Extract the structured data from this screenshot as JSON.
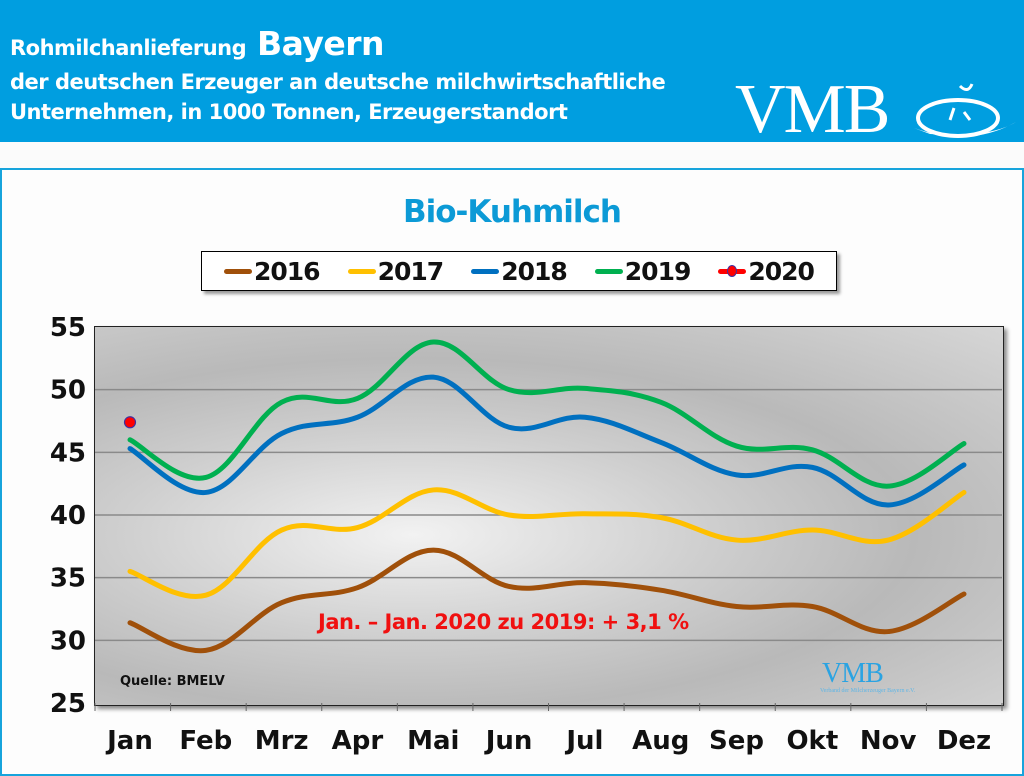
{
  "header": {
    "title_prefix": "Rohmilchanlieferung",
    "title_region": "Bayern",
    "subtitle_line1": "der deutschen Erzeuger an deutsche milchwirtschaftliche",
    "subtitle_line2": "Unternehmen, in 1000 Tonnen, Erzeugerstandort",
    "logo_text": "VMB",
    "logo_icon": "vmb-swirl-icon"
  },
  "colors": {
    "header_bg": "#009ee0",
    "title": "#0c9ad6",
    "s2016": "#a0500a",
    "s2017": "#ffc000",
    "s2018": "#0070c0",
    "s2019": "#00b050",
    "s2020": "#ff0000",
    "annotation": "#f01010"
  },
  "chart_data": {
    "type": "line",
    "title": "Bio-Kuhmilch",
    "xlabel": "",
    "ylabel": "",
    "unit": "1000 Tonnen",
    "categories": [
      "Jan",
      "Feb",
      "Mrz",
      "Apr",
      "Mai",
      "Jun",
      "Jul",
      "Aug",
      "Sep",
      "Okt",
      "Nov",
      "Dez"
    ],
    "ylim": [
      25,
      55
    ],
    "yticks": [
      25,
      30,
      35,
      40,
      45,
      50,
      55
    ],
    "grid": true,
    "legend_position": "top",
    "series": [
      {
        "name": "2016",
        "color": "#a0500a",
        "values": [
          31.4,
          29.2,
          33.0,
          34.2,
          37.2,
          34.3,
          34.6,
          34.0,
          32.7,
          32.7,
          30.7,
          33.7
        ]
      },
      {
        "name": "2017",
        "color": "#ffc000",
        "values": [
          35.5,
          33.6,
          38.8,
          39.0,
          42.0,
          40.0,
          40.1,
          39.8,
          38.0,
          38.8,
          38.0,
          41.8
        ]
      },
      {
        "name": "2018",
        "color": "#0070c0",
        "values": [
          45.3,
          41.8,
          46.5,
          47.8,
          51.0,
          47.0,
          47.8,
          45.8,
          43.2,
          43.8,
          40.8,
          44.0
        ]
      },
      {
        "name": "2019",
        "color": "#00b050",
        "values": [
          46.0,
          43.0,
          49.0,
          49.3,
          53.8,
          50.0,
          50.1,
          49.0,
          45.5,
          45.2,
          42.3,
          45.7
        ]
      },
      {
        "name": "2020",
        "color": "#ff0000",
        "marker": true,
        "values": [
          47.4
        ]
      }
    ],
    "annotation": "Jan. – Jan. 2020 zu 2019: + 3,1 %",
    "source": "Quelle:  BMELV"
  },
  "watermark": {
    "text": "VMB",
    "subtext": "Verband der Milcherzeuger Bayern e.V."
  }
}
